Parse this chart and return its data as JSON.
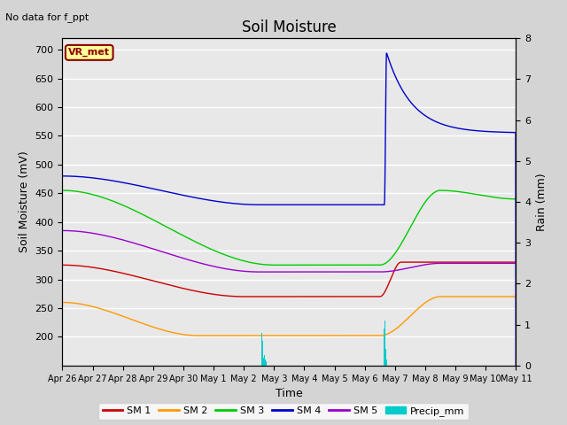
{
  "title": "Soil Moisture",
  "no_data_text": "No data for f_ppt",
  "station_label": "VR_met",
  "xlabel": "Time",
  "ylabel_left": "Soil Moisture (mV)",
  "ylabel_right": "Rain (mm)",
  "ylim_left": [
    150,
    720
  ],
  "ylim_right": [
    0.0,
    8.0
  ],
  "yticks_left": [
    200,
    250,
    300,
    350,
    400,
    450,
    500,
    550,
    600,
    650,
    700
  ],
  "yticks_right": [
    0.0,
    1.0,
    2.0,
    3.0,
    4.0,
    5.0,
    6.0,
    7.0,
    8.0
  ],
  "fig_bg_color": "#d4d4d4",
  "plot_bg_color": "#e8e8e8",
  "colors": {
    "SM1": "#cc0000",
    "SM2": "#ff9900",
    "SM3": "#00cc00",
    "SM4": "#0000cc",
    "SM5": "#9900cc",
    "Precip": "#00cccc"
  },
  "date_labels": [
    "Apr 26",
    "Apr 27",
    "Apr 28",
    "Apr 29",
    "Apr 30",
    "May 1",
    "May 2",
    "May 3",
    "May 4",
    "May 5",
    "May 6",
    "May 7",
    "May 8",
    "May 9",
    "May 10",
    "May 11"
  ]
}
